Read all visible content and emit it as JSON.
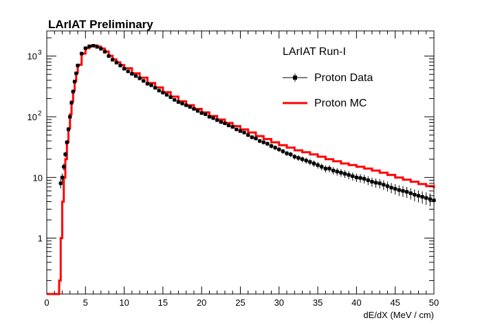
{
  "chart_data": {
    "type": "line",
    "title": "LArIAT Preliminary",
    "xlabel": "dE/dX (MeV / cm)",
    "ylabel": "",
    "xlim": [
      0,
      50
    ],
    "ylim": [
      0.12,
      2600
    ],
    "ylog": true,
    "grid": false,
    "legend_placement": "top-right",
    "legend_header": "LArIAT Run-I",
    "x_ticks": [
      "0",
      "5",
      "10",
      "15",
      "20",
      "25",
      "30",
      "35",
      "40",
      "45",
      "50"
    ],
    "y_ticks": [
      {
        "value": 1,
        "label": "1"
      },
      {
        "value": 10,
        "label": "10"
      },
      {
        "value": 100,
        "label": "10",
        "sup": "2"
      },
      {
        "value": 1000,
        "label": "10",
        "sup": "3"
      }
    ],
    "series": [
      {
        "name": "Proton Data",
        "kind": "points-with-errors",
        "color": "#000000",
        "x": [
          1.8,
          2.0,
          2.2,
          2.4,
          2.6,
          2.8,
          3.0,
          3.2,
          3.4,
          3.6,
          3.8,
          4.0,
          4.5,
          5.0,
          5.5,
          6.0,
          6.5,
          7.0,
          7.5,
          8.0,
          8.5,
          9.0,
          9.5,
          10.0,
          10.5,
          11.0,
          11.5,
          12.0,
          12.5,
          13.0,
          13.5,
          14.0,
          14.5,
          15.0,
          15.5,
          16.0,
          16.5,
          17.0,
          17.5,
          18.0,
          18.5,
          19.0,
          19.5,
          20.0,
          20.5,
          21.0,
          21.5,
          22.0,
          22.5,
          23.0,
          23.5,
          24.0,
          24.5,
          25.0,
          25.5,
          26.0,
          26.5,
          27.0,
          27.5,
          28.0,
          28.5,
          29.0,
          29.5,
          30.0,
          30.5,
          31.0,
          31.5,
          32.0,
          32.5,
          33.0,
          33.5,
          34.0,
          34.5,
          35.0,
          35.5,
          36.0,
          36.5,
          37.0,
          37.5,
          38.0,
          38.5,
          39.0,
          39.5,
          40.0,
          40.5,
          41.0,
          41.5,
          42.0,
          42.5,
          43.0,
          43.5,
          44.0,
          44.5,
          45.0,
          45.5,
          46.0,
          46.5,
          47.0,
          47.5,
          48.0,
          48.5,
          49.0,
          49.5,
          50.0
        ],
        "y": [
          8,
          10,
          15,
          24,
          38,
          62,
          100,
          170,
          260,
          380,
          520,
          700,
          1100,
          1350,
          1450,
          1480,
          1420,
          1320,
          1180,
          1000,
          870,
          780,
          700,
          620,
          560,
          510,
          470,
          430,
          390,
          350,
          330,
          300,
          270,
          250,
          230,
          210,
          190,
          175,
          165,
          155,
          145,
          135,
          125,
          115,
          110,
          100,
          95,
          88,
          82,
          78,
          72,
          68,
          62,
          58,
          55,
          50,
          46,
          44,
          40,
          38,
          36,
          33,
          31,
          29,
          27,
          25,
          24,
          22,
          21,
          20,
          19,
          18,
          17,
          16,
          15,
          14,
          14,
          13,
          12.5,
          12,
          11.5,
          11,
          10.5,
          10,
          9.8,
          9.5,
          9.0,
          8.5,
          8.2,
          8.0,
          7.6,
          7.2,
          6.8,
          6.5,
          6.2,
          6.0,
          5.8,
          5.5,
          5.2,
          5.0,
          4.8,
          4.6,
          4.4,
          4.2
        ]
      },
      {
        "name": "Proton MC",
        "kind": "step-line",
        "color": "#ff0000",
        "x": [
          0,
          1.6,
          1.8,
          2.0,
          2.2,
          2.4,
          2.6,
          2.8,
          3.0,
          3.2,
          3.4,
          3.6,
          3.8,
          4.0,
          4.5,
          5.0,
          5.5,
          6.0,
          6.5,
          7.0,
          7.5,
          8.0,
          8.5,
          9.0,
          9.5,
          10.0,
          11.0,
          12.0,
          13.0,
          14.0,
          15.0,
          16.0,
          17.0,
          18.0,
          19.0,
          20.0,
          21.0,
          22.0,
          23.0,
          24.0,
          25.0,
          26.0,
          27.0,
          28.0,
          29.0,
          30.0,
          31.0,
          32.0,
          33.0,
          34.0,
          35.0,
          36.0,
          37.0,
          38.0,
          39.0,
          40.0,
          41.0,
          42.0,
          43.0,
          44.0,
          45.0,
          46.0,
          47.0,
          48.0,
          49.0,
          50.0
        ],
        "y": [
          0.12,
          0.2,
          1.0,
          4,
          10,
          20,
          38,
          65,
          110,
          180,
          270,
          390,
          530,
          720,
          1100,
          1350,
          1470,
          1500,
          1430,
          1330,
          1190,
          1010,
          880,
          790,
          710,
          630,
          520,
          440,
          360,
          305,
          255,
          215,
          180,
          155,
          135,
          118,
          103,
          90,
          79,
          70,
          62,
          55,
          48,
          43,
          38,
          34,
          31,
          28,
          26,
          24,
          22,
          20,
          18.5,
          17,
          16,
          15,
          14,
          13,
          12,
          11,
          10,
          9.2,
          8.5,
          7.8,
          7.2,
          6.6
        ]
      }
    ]
  }
}
